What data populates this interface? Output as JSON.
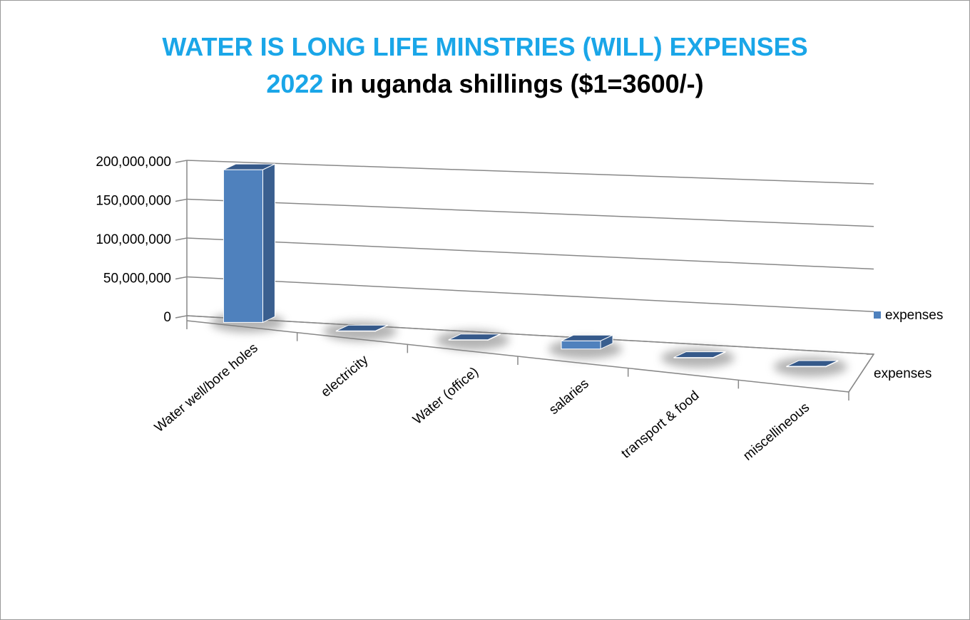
{
  "chart_data": {
    "type": "bar3d",
    "title": {
      "line1": "WATER IS LONG LIFE MINSTRIES (WILL) EXPENSES",
      "line2_highlight": "2022",
      "line2_rest": "in uganda shillings ($1=3600/-)"
    },
    "categories": [
      "Water well/bore holes",
      "electricity",
      "Water (office)",
      "salaries",
      "transport & food",
      "miscellineous"
    ],
    "series": [
      {
        "name": "expenses",
        "color": "#4f81bd",
        "values": [
          195000000,
          500000,
          500000,
          10000000,
          500000,
          500000
        ]
      }
    ],
    "depth_categories": [
      "expenses"
    ],
    "ylim": [
      0,
      200000000
    ],
    "yticks": [
      0,
      {
        "value": 50000000,
        "label": "50,000,000"
      },
      {
        "value": 100000000,
        "label": "100,000,000"
      },
      {
        "value": 150000000,
        "label": "150,000,000"
      },
      {
        "value": 200000000,
        "label": "200,000,000"
      }
    ],
    "grid": true,
    "legend": "right"
  }
}
